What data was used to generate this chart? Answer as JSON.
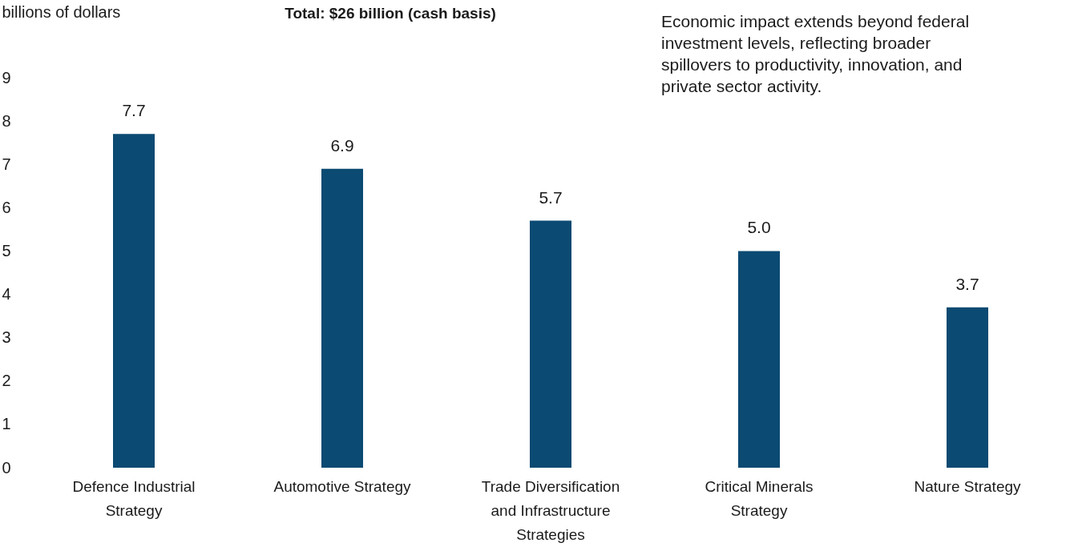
{
  "chart_data": {
    "type": "bar",
    "title": "Total: $26 billion (cash basis)",
    "ylabel": "billions of dollars",
    "annotations": [
      "Economic impact extends beyond federal investment levels, reflecting broader spillovers to productivity, innovation, and private sector activity."
    ],
    "categories": [
      "Defence Industrial Strategy",
      "Automotive Strategy",
      "Trade Diversification and Infrastructure Strategies",
      "Critical Minerals Strategy",
      "Nature Strategy"
    ],
    "values": [
      7.7,
      6.9,
      5.7,
      5.0,
      3.7
    ],
    "value_labels": [
      "7.7",
      "6.9",
      "5.7",
      "5.0",
      "3.7"
    ],
    "color": "#0b4a72",
    "ylim": [
      0,
      9
    ],
    "yticks": [
      0,
      1,
      2,
      3,
      4,
      5,
      6,
      7,
      8,
      9
    ]
  }
}
